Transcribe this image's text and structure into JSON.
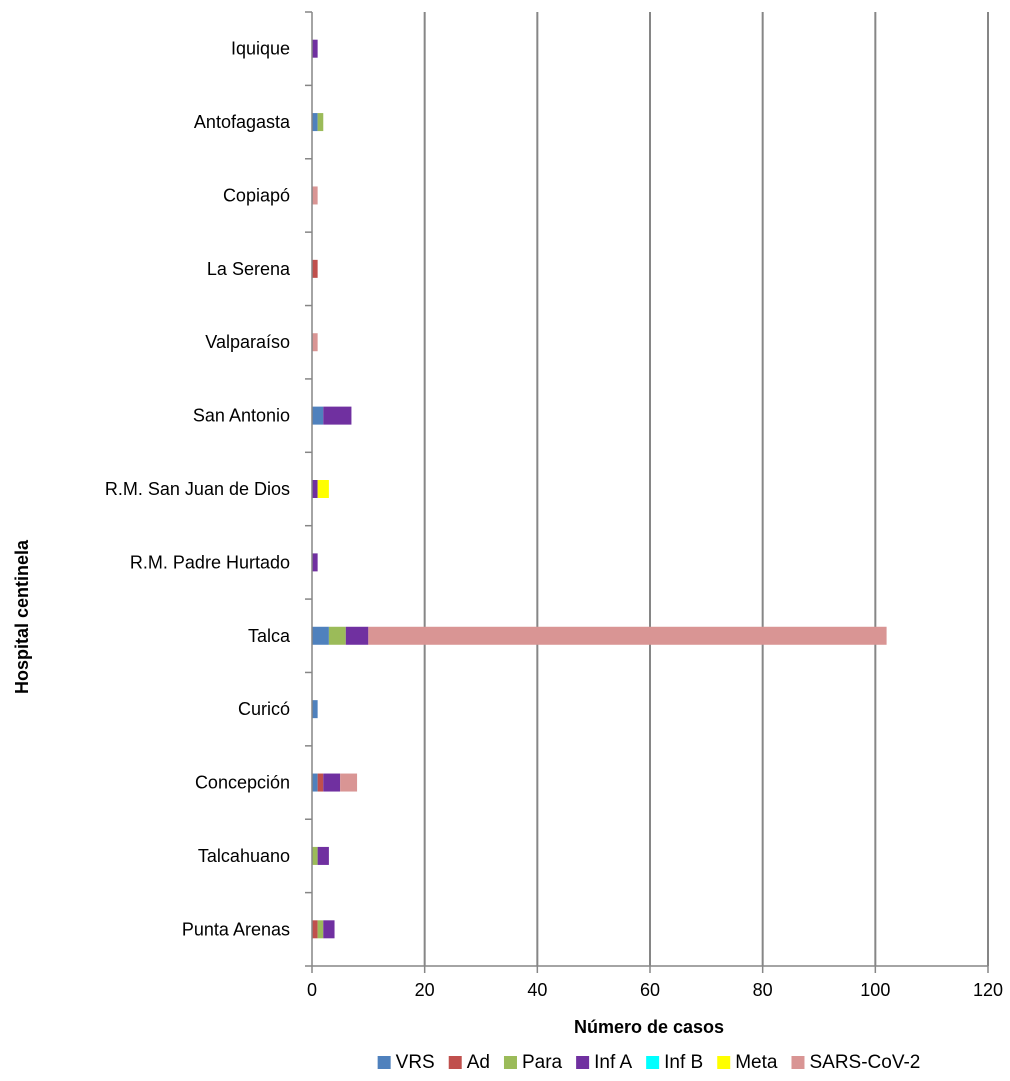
{
  "chart_data": {
    "type": "bar",
    "orientation": "horizontal",
    "stacked": true,
    "title": "",
    "xlabel": "Número de casos",
    "ylabel": "Hospital centinela",
    "xlim": [
      0,
      120
    ],
    "x_ticks": [
      0,
      20,
      40,
      60,
      80,
      100,
      120
    ],
    "grid": "vertical gridlines",
    "legend_position": "bottom",
    "categories": [
      "Iquique",
      "Antofagasta",
      "Copiapó",
      "La Serena",
      "Valparaíso",
      "San Antonio",
      "R.M. San Juan de Dios",
      "R.M. Padre Hurtado",
      "Talca",
      "Curicó",
      "Concepción",
      "Talcahuano",
      "Punta Arenas"
    ],
    "series": [
      {
        "name": "VRS",
        "color": "#4f81bd",
        "values": [
          0,
          1,
          0,
          0,
          0,
          2,
          0,
          0,
          3,
          1,
          1,
          0,
          0
        ]
      },
      {
        "name": "Ad",
        "color": "#c0504d",
        "values": [
          0,
          0,
          0,
          1,
          0,
          0,
          0,
          0,
          0,
          0,
          1,
          0,
          1
        ]
      },
      {
        "name": "Para",
        "color": "#9bbb59",
        "values": [
          0,
          1,
          0,
          0,
          0,
          0,
          0,
          0,
          3,
          0,
          0,
          1,
          1
        ]
      },
      {
        "name": "Inf A",
        "color": "#7030a0",
        "values": [
          1,
          0,
          0,
          0,
          0,
          5,
          1,
          1,
          4,
          0,
          3,
          2,
          2
        ]
      },
      {
        "name": "Inf B",
        "color": "#00ffff",
        "values": [
          0,
          0,
          0,
          0,
          0,
          0,
          0,
          0,
          0,
          0,
          0,
          0,
          0
        ]
      },
      {
        "name": "Meta",
        "color": "#ffff00",
        "values": [
          0,
          0,
          0,
          0,
          0,
          0,
          2,
          0,
          0,
          0,
          0,
          0,
          0
        ]
      },
      {
        "name": "SARS-CoV-2",
        "color": "#d99594",
        "values": [
          0,
          0,
          1,
          0,
          1,
          0,
          0,
          0,
          92,
          0,
          3,
          0,
          0
        ]
      }
    ]
  }
}
